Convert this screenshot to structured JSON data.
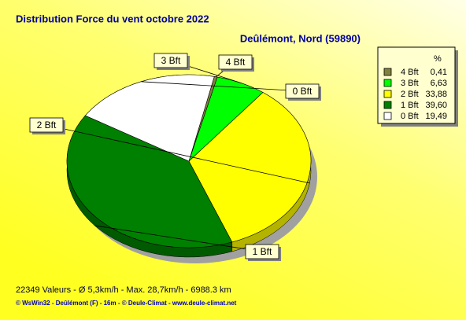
{
  "chart_data": {
    "type": "pie",
    "title": "Distribution Force du vent  octobre 2022",
    "subtitle": "Deûlémont, Nord (59890)",
    "legend_header": "%",
    "categories": [
      "4 Bft",
      "3 Bft",
      "2 Bft",
      "1 Bft",
      "0 Bft"
    ],
    "values": [
      0.41,
      6.63,
      33.88,
      39.6,
      19.49
    ],
    "value_labels": [
      "0,41",
      "6,63",
      "33,88",
      "39,60",
      "19,49"
    ],
    "colors": [
      "#808040",
      "#00ff00",
      "#ffff00",
      "#008000",
      "#ffffff"
    ],
    "notes": [
      "22349 Valeurs   -   Ø 5,3km/h  -  Max. 28,7km/h   -   6988.3 km",
      "© WsWin32  -  Deûlémont (F) - 16m  -  © Deule-Climat - www.deule-climat.net"
    ]
  }
}
